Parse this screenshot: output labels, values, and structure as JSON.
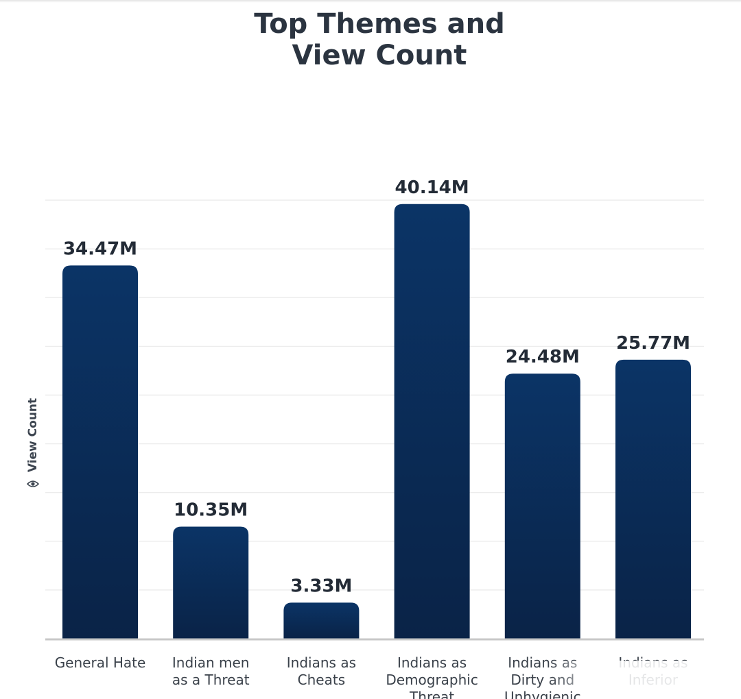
{
  "chart_data": {
    "type": "bar",
    "title": [
      "Top Themes and",
      "View Count"
    ],
    "xlabel": "",
    "ylabel": "View Count",
    "ylabel_icon": "eye-icon",
    "categories": [
      [
        "General Hate"
      ],
      [
        "Indian men",
        "as a Threat"
      ],
      [
        "Indians as",
        "Cheats"
      ],
      [
        "Indians as",
        "Demographic",
        "Threat"
      ],
      [
        "Indians as",
        "Dirty and",
        "Unhygienic"
      ],
      [
        "Indians as",
        "Inferior"
      ]
    ],
    "values": [
      34.47,
      10.35,
      3.33,
      40.14,
      24.48,
      25.77
    ],
    "value_labels": [
      "34.47M",
      "10.35M",
      "3.33M",
      "40.14M",
      "24.48M",
      "25.77M"
    ],
    "unit": "M",
    "ylim": [
      0,
      45
    ],
    "grid": true,
    "bar_color_top": "#0b3466",
    "bar_color_bottom": "#0a2347"
  }
}
